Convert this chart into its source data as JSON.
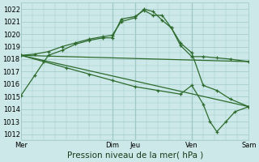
{
  "title": "",
  "xlabel": "Pression niveau de la mer( hPa )",
  "ylabel": "",
  "bg_color": "#cce8e8",
  "grid_color": "#9fc8c8",
  "line_color": "#2d6b2d",
  "ylim": [
    1011.5,
    1022.5
  ],
  "xlim": [
    0,
    5
  ],
  "xtick_positions": [
    0,
    2,
    2.5,
    3.75,
    5
  ],
  "xtick_labels": [
    "Mer",
    "Dim",
    "Jeu",
    "Ven",
    "Sam"
  ],
  "vlines_x": [
    2,
    2.5,
    3.75
  ],
  "lines": [
    {
      "x": [
        0.0,
        0.3,
        0.6,
        0.9,
        1.2,
        1.5,
        1.8,
        2.0,
        2.2,
        2.5,
        2.7,
        2.9,
        3.1,
        3.3,
        3.5,
        3.75,
        4.0,
        4.3,
        4.6,
        5.0
      ],
      "y": [
        1015.1,
        1016.7,
        1018.3,
        1018.7,
        1019.2,
        1019.5,
        1019.7,
        1019.7,
        1021.2,
        1021.4,
        1021.9,
        1021.5,
        1021.5,
        1020.5,
        1019.1,
        1018.2,
        1018.2,
        1018.1,
        1018.0,
        1017.8
      ],
      "marker": true
    },
    {
      "x": [
        0.0,
        0.3,
        0.6,
        0.9,
        1.2,
        1.5,
        1.8,
        2.0,
        2.2,
        2.5,
        2.7,
        2.9,
        3.1,
        3.3,
        3.5,
        3.75,
        4.0,
        4.3,
        4.6,
        5.0
      ],
      "y": [
        1018.3,
        1018.4,
        1018.6,
        1019.0,
        1019.3,
        1019.6,
        1019.8,
        1019.9,
        1021.0,
        1021.3,
        1022.0,
        1021.8,
        1021.1,
        1020.5,
        1019.3,
        1018.5,
        1015.9,
        1015.5,
        1014.8,
        1014.2
      ],
      "marker": true
    },
    {
      "x": [
        0.0,
        5.0
      ],
      "y": [
        1018.3,
        1017.8
      ],
      "marker": false
    },
    {
      "x": [
        0.0,
        5.0
      ],
      "y": [
        1018.3,
        1014.2
      ],
      "marker": false
    },
    {
      "x": [
        0.0,
        0.5,
        1.0,
        1.5,
        2.0,
        2.5,
        3.0,
        3.5,
        3.75,
        4.0,
        4.15,
        4.3,
        4.5,
        4.7,
        5.0
      ],
      "y": [
        1018.3,
        1017.8,
        1017.3,
        1016.8,
        1016.3,
        1015.8,
        1015.5,
        1015.2,
        1015.9,
        1014.4,
        1013.0,
        1012.2,
        1013.0,
        1013.8,
        1014.2
      ],
      "marker": true
    }
  ],
  "tick_fontsize": 6.0,
  "xlabel_fontsize": 7.5
}
